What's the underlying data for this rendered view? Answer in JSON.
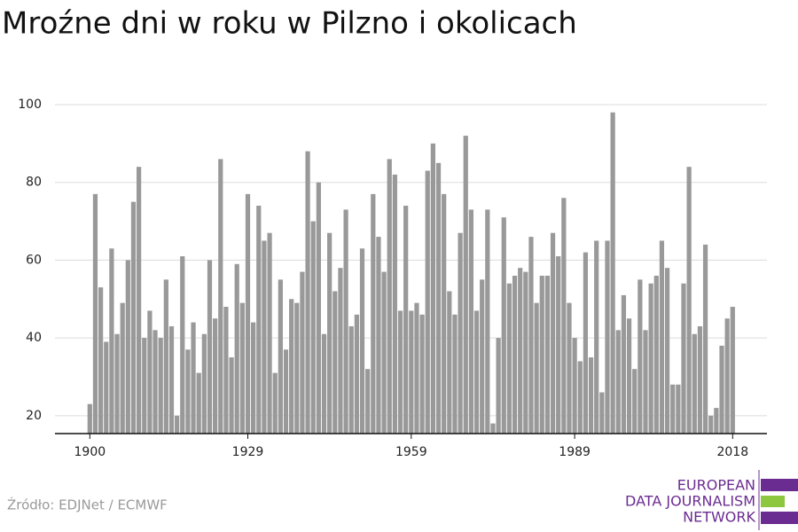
{
  "chart_data": {
    "type": "bar",
    "title": "Mroźne dni w roku w Pilzno i okolicach",
    "source": "Źródło: EDJNet / ECMWF",
    "logo": [
      "EUROPEAN",
      "DATA JOURNALISM",
      "NETWORK"
    ],
    "color": "#999999",
    "grid": true,
    "x": [
      1900,
      1901,
      1902,
      1903,
      1904,
      1905,
      1906,
      1907,
      1908,
      1909,
      1910,
      1911,
      1912,
      1913,
      1914,
      1915,
      1916,
      1917,
      1918,
      1919,
      1920,
      1921,
      1922,
      1923,
      1924,
      1925,
      1926,
      1927,
      1928,
      1929,
      1930,
      1931,
      1932,
      1933,
      1934,
      1935,
      1936,
      1937,
      1938,
      1939,
      1940,
      1941,
      1942,
      1943,
      1944,
      1945,
      1946,
      1947,
      1948,
      1949,
      1950,
      1951,
      1952,
      1953,
      1954,
      1955,
      1956,
      1957,
      1958,
      1959,
      1960,
      1961,
      1962,
      1963,
      1964,
      1965,
      1966,
      1967,
      1968,
      1969,
      1970,
      1971,
      1972,
      1973,
      1974,
      1975,
      1976,
      1977,
      1978,
      1979,
      1980,
      1981,
      1982,
      1983,
      1984,
      1985,
      1986,
      1987,
      1988,
      1989,
      1990,
      1991,
      1992,
      1993,
      1994,
      1995,
      1996,
      1997,
      1998,
      1999,
      2000,
      2001,
      2002,
      2003,
      2004,
      2005,
      2006,
      2007,
      2008,
      2009,
      2010,
      2011,
      2012,
      2013,
      2014,
      2015,
      2016,
      2017,
      2018
    ],
    "values": [
      23,
      77,
      53,
      39,
      63,
      41,
      49,
      60,
      75,
      84,
      40,
      47,
      42,
      40,
      55,
      43,
      20,
      61,
      37,
      44,
      31,
      41,
      60,
      45,
      86,
      48,
      35,
      59,
      49,
      77,
      44,
      74,
      65,
      67,
      31,
      55,
      37,
      50,
      49,
      57,
      88,
      70,
      80,
      41,
      67,
      52,
      58,
      73,
      43,
      46,
      63,
      32,
      77,
      66,
      57,
      86,
      82,
      47,
      74,
      47,
      49,
      46,
      83,
      90,
      85,
      77,
      52,
      46,
      67,
      92,
      73,
      47,
      55,
      73,
      18,
      40,
      71,
      54,
      56,
      58,
      57,
      66,
      49,
      56,
      56,
      67,
      61,
      76,
      49,
      40,
      34,
      62,
      35,
      65,
      26,
      65,
      98,
      42,
      51,
      45,
      32,
      55,
      42,
      54,
      56,
      65,
      58,
      28,
      28,
      54,
      84,
      41,
      43,
      64,
      20,
      22,
      38,
      45,
      48
    ],
    "xlim": [
      1893.6,
      2024.3
    ],
    "xticks": [
      1900,
      1929,
      1959,
      1989,
      2018
    ],
    "ylim": [
      15.4,
      100
    ],
    "yticks": [
      20,
      40,
      60,
      80,
      100
    ]
  }
}
